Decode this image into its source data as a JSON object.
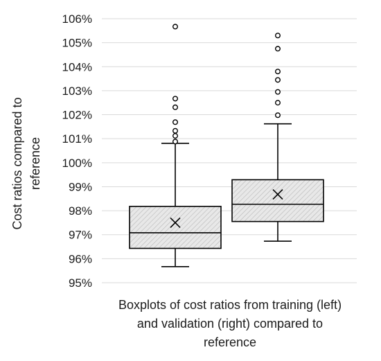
{
  "chart_data": {
    "type": "boxplot",
    "title": "",
    "ylabel_lines": [
      "Cost ratios compared to",
      "reference"
    ],
    "xlabel_lines": [
      "Boxplots of cost ratios from training (left)",
      "and validation (right) compared to",
      "reference"
    ],
    "ylim": [
      95,
      106
    ],
    "yticks": [
      95,
      96,
      97,
      98,
      99,
      100,
      101,
      102,
      103,
      104,
      105,
      106
    ],
    "ytick_labels": [
      "95%",
      "96%",
      "97%",
      "98%",
      "99%",
      "100%",
      "101%",
      "102%",
      "103%",
      "104%",
      "105%",
      "106%"
    ],
    "grid": true,
    "series": [
      {
        "min": 95.67,
        "q1": 96.43,
        "median": 97.08,
        "q3": 98.18,
        "max": 100.81,
        "mean": 97.5,
        "outliers": [
          100.88,
          101.12,
          101.33,
          101.69,
          102.31,
          102.67,
          105.67
        ]
      },
      {
        "min": 96.73,
        "q1": 97.55,
        "median": 98.27,
        "q3": 99.29,
        "max": 101.62,
        "mean": 98.68,
        "outliers": [
          101.98,
          102.5,
          102.95,
          103.45,
          103.8,
          104.75,
          105.3
        ]
      }
    ],
    "colors": {
      "box_fill": "#e8e8e8",
      "hatch": "#b8b8b8",
      "stroke": "#000000",
      "grid": "#d9d9d9"
    }
  }
}
